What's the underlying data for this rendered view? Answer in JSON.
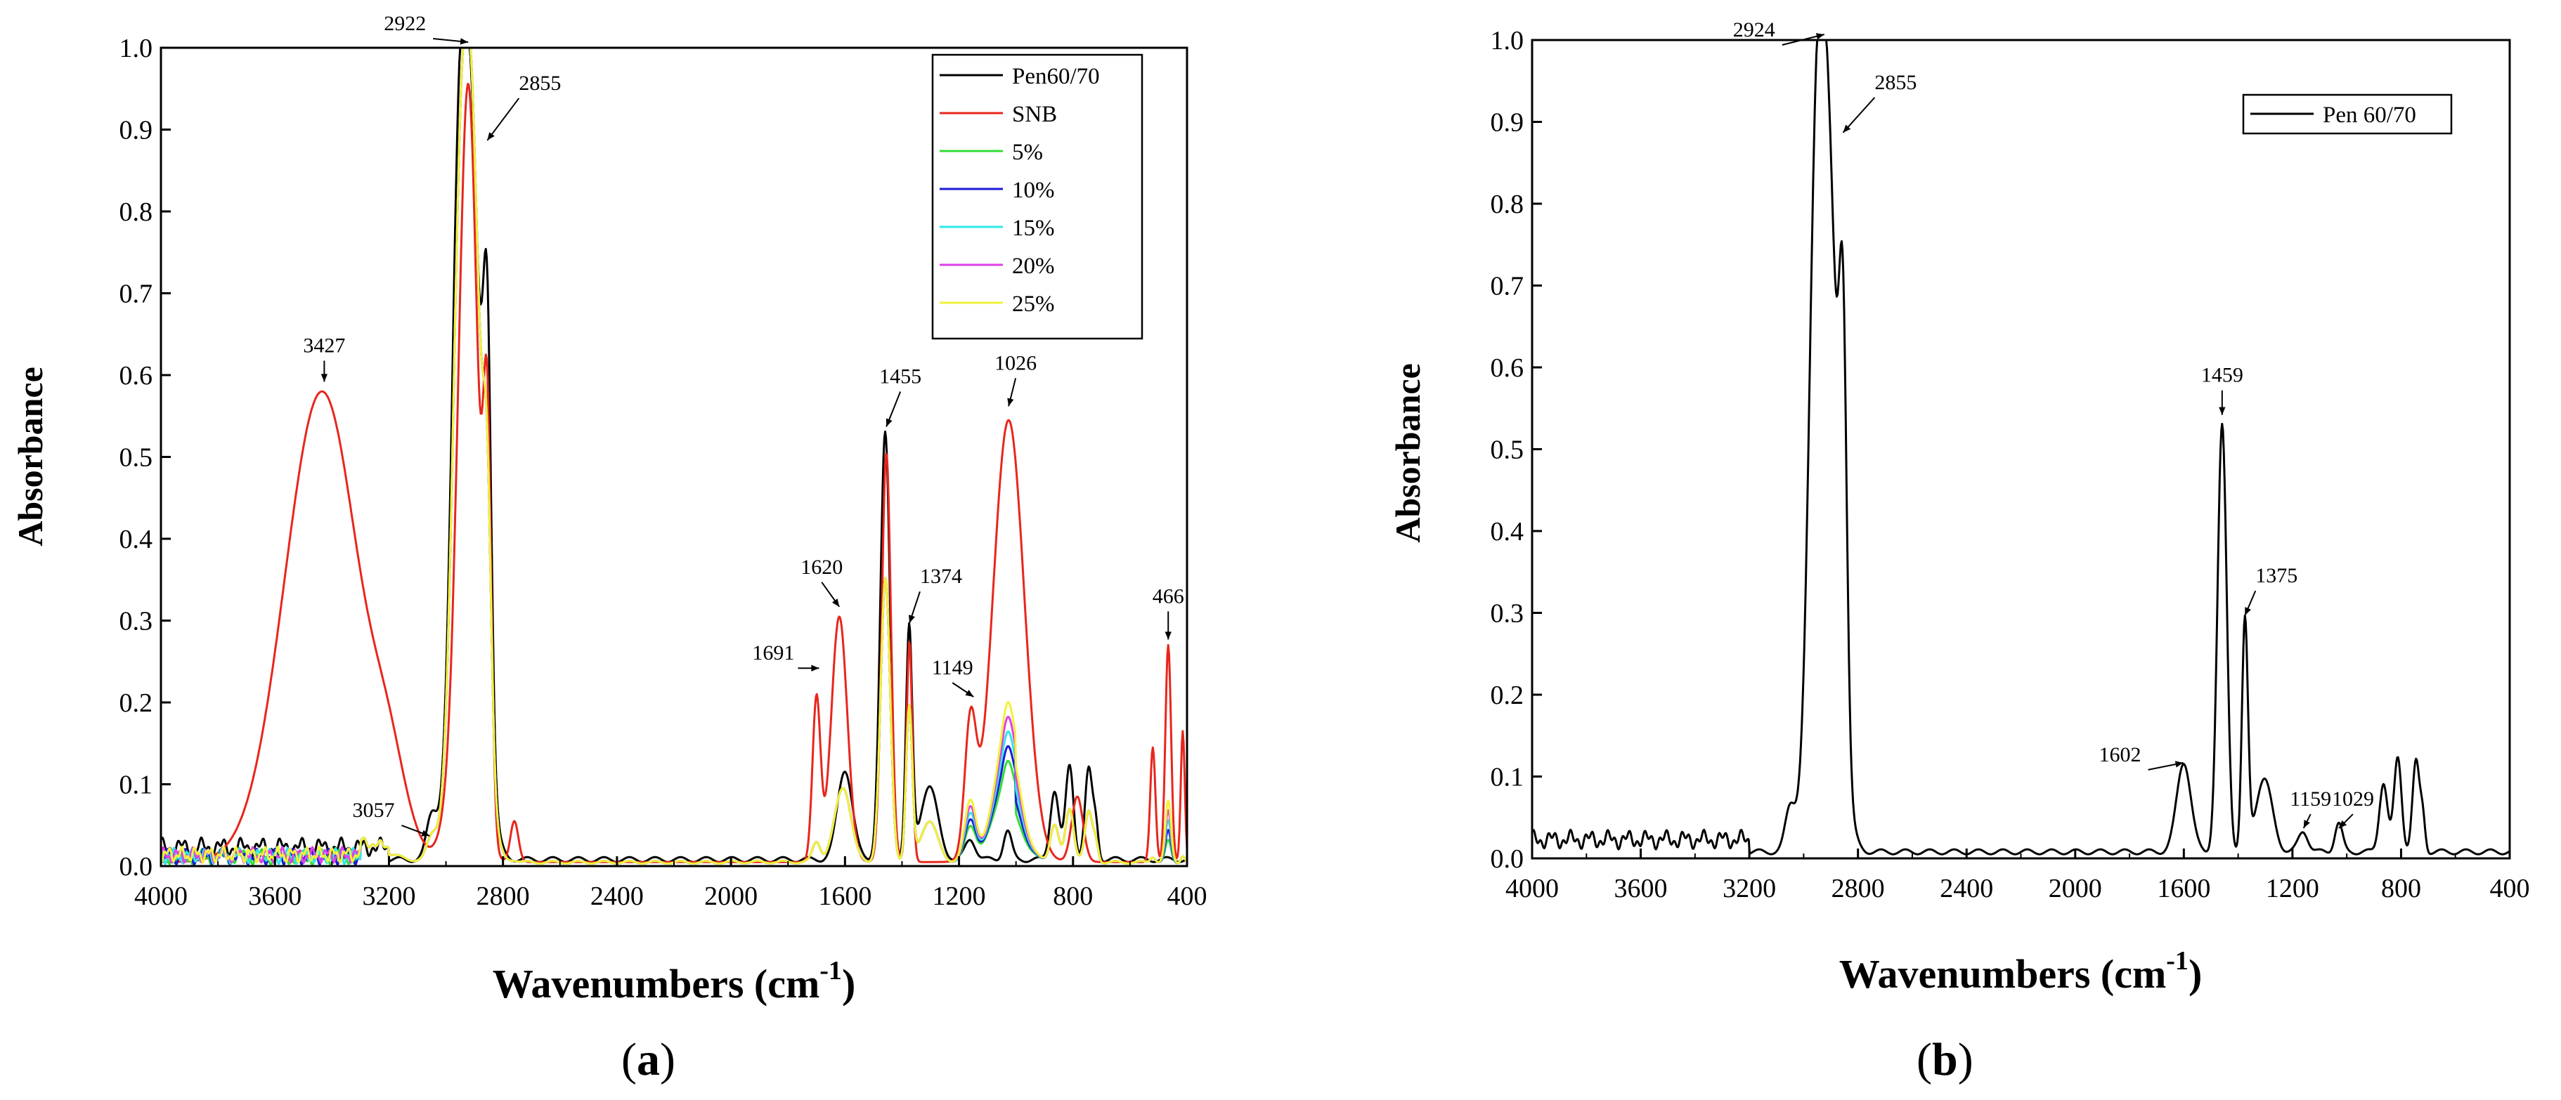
{
  "chart_data": [
    {
      "type": "line",
      "panel_label": "a",
      "xlabel": "Wavenumbers (cm",
      "xlabel_sup": "-1",
      "xlabel_close": ")",
      "ylabel": "Absorbance",
      "xlim": [
        4000,
        400
      ],
      "ylim": [
        0,
        1.0
      ],
      "xticks": [
        4000,
        3600,
        3200,
        2800,
        2400,
        2000,
        1600,
        1200,
        800,
        400
      ],
      "yticks": [
        "0.0",
        "0.1",
        "0.2",
        "0.3",
        "0.4",
        "0.5",
        "0.6",
        "0.7",
        "0.8",
        "0.9",
        "1.0"
      ],
      "legend_position": "top-right",
      "series": [
        {
          "name": "Pen60/70",
          "color": "#000000"
        },
        {
          "name": "SNB",
          "color": "#e8261c"
        },
        {
          "name": "5%",
          "color": "#33dd33"
        },
        {
          "name": "10%",
          "color": "#1a1ad6"
        },
        {
          "name": "15%",
          "color": "#2ee8e8"
        },
        {
          "name": "20%",
          "color": "#e040e8"
        },
        {
          "name": "25%",
          "color": "#f2f23a"
        }
      ],
      "annotations": [
        {
          "label": "2922",
          "x": 2922,
          "y": 1.0
        },
        {
          "label": "2855",
          "x": 2855,
          "y": 0.88
        },
        {
          "label": "3427",
          "x": 3427,
          "y": 0.585
        },
        {
          "label": "3057",
          "x": 3057,
          "y": 0.03
        },
        {
          "label": "1455",
          "x": 1455,
          "y": 0.53
        },
        {
          "label": "1026",
          "x": 1026,
          "y": 0.555
        },
        {
          "label": "1620",
          "x": 1620,
          "y": 0.31
        },
        {
          "label": "1374",
          "x": 1374,
          "y": 0.29
        },
        {
          "label": "1691",
          "x": 1691,
          "y": 0.235
        },
        {
          "label": "1149",
          "x": 1149,
          "y": 0.2
        },
        {
          "label": "466",
          "x": 466,
          "y": 0.27
        }
      ]
    },
    {
      "type": "line",
      "panel_label": "b",
      "xlabel": "Wavenumbers (cm",
      "xlabel_sup": "-1",
      "xlabel_close": ")",
      "ylabel": "Absorbance",
      "xlim": [
        4000,
        400
      ],
      "ylim": [
        0,
        1.0
      ],
      "xticks": [
        4000,
        3600,
        3200,
        2800,
        2400,
        2000,
        1600,
        1200,
        800,
        400
      ],
      "yticks": [
        "0.0",
        "0.1",
        "0.2",
        "0.3",
        "0.4",
        "0.5",
        "0.6",
        "0.7",
        "0.8",
        "0.9",
        "1.0"
      ],
      "legend_position": "top-right",
      "series": [
        {
          "name": "Pen 60/70",
          "color": "#000000"
        }
      ],
      "annotations": [
        {
          "label": "2924",
          "x": 2924,
          "y": 1.0
        },
        {
          "label": "2855",
          "x": 2855,
          "y": 0.88
        },
        {
          "label": "1459",
          "x": 1459,
          "y": 0.535
        },
        {
          "label": "1375",
          "x": 1375,
          "y": 0.29
        },
        {
          "label": "1602",
          "x": 1602,
          "y": 0.11
        },
        {
          "label": "1159",
          "x": 1159,
          "y": 0.03
        },
        {
          "label": "1029",
          "x": 1029,
          "y": 0.03
        }
      ]
    }
  ]
}
